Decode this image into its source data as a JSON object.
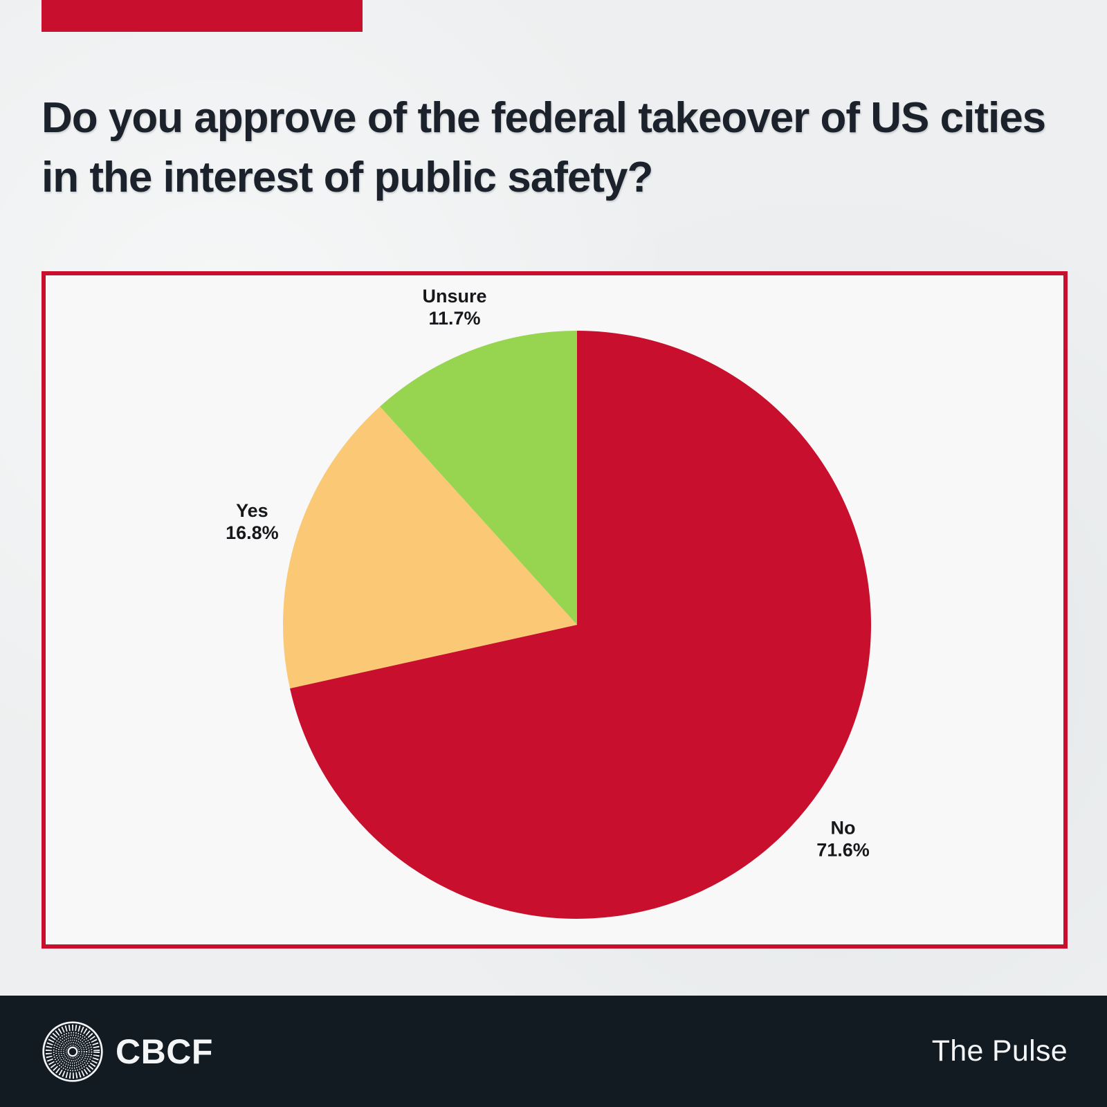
{
  "page": {
    "background_color": "#EDEFF0",
    "accent_color": "#C8102E",
    "panel_background": "#F8F8F8",
    "footer_background": "#121A22"
  },
  "header": {
    "title": "Do you approve of the federal takeover of US cities in the interest of public safety?"
  },
  "chart_data": {
    "type": "pie",
    "title": "Do you approve of the federal takeover of US cities in the interest of public safety?",
    "categories": [
      "No",
      "Yes",
      "Unsure"
    ],
    "values": [
      71.6,
      16.8,
      11.7
    ],
    "slices": [
      {
        "label": "No",
        "value": 71.6,
        "display": "71.6%",
        "color": "#C8102E"
      },
      {
        "label": "Yes",
        "value": 16.8,
        "display": "16.8%",
        "color": "#FBC875"
      },
      {
        "label": "Unsure",
        "value": 11.7,
        "display": "11.7%",
        "color": "#97D44F"
      }
    ],
    "start_angle": "12-oclock",
    "direction": "clockwise",
    "label_position": "outside",
    "label_color": "#16181B",
    "legend": false
  },
  "footer": {
    "logo_icon": "cbcf-seal-icon",
    "brand": "CBCF",
    "wordmark": "The Pulse"
  }
}
